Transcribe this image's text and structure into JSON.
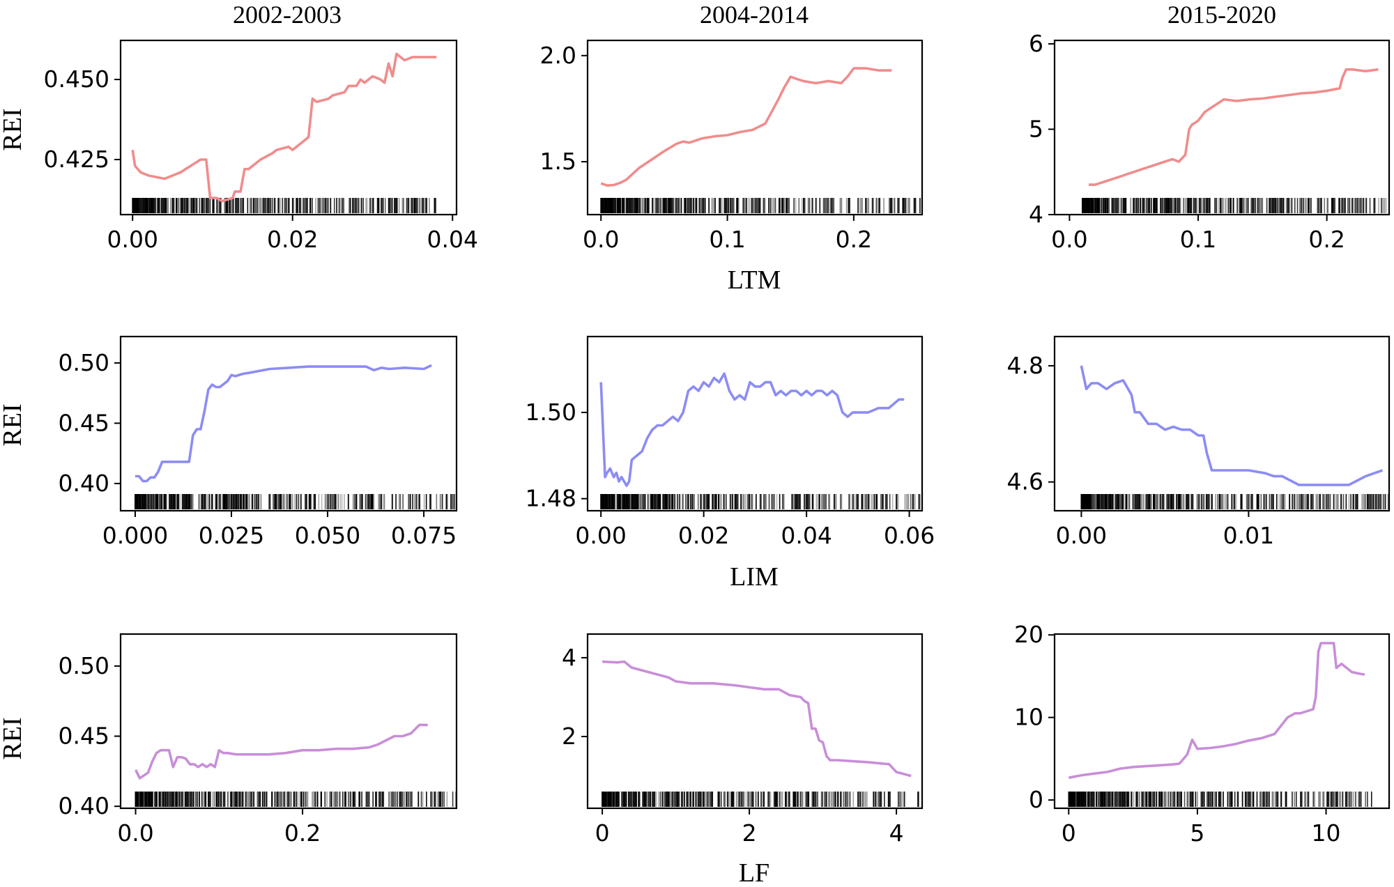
{
  "figure": {
    "column_titles": [
      "2002-2003",
      "2004-2014",
      "2015-2020"
    ],
    "row_ylabel": "REI",
    "row_xlabels": [
      "LTM",
      "LIM",
      "LF"
    ],
    "colors": {
      "LTM": "#f08c8c",
      "LIM": "#8c8cf4",
      "LF": "#c88ed8",
      "rug": "#000000"
    }
  },
  "chart_data": [
    {
      "type": "line",
      "id": "ltm-2002-2003",
      "period": "2002-2003",
      "variable": "LTM",
      "xlabel": "",
      "ylabel": "REI",
      "xlim": [
        -0.0015,
        0.0405
      ],
      "ylim": [
        0.4078,
        0.4622
      ],
      "xticks": [
        0.0,
        0.02,
        0.04
      ],
      "xtick_labels": [
        "0.00",
        "0.02",
        "0.04"
      ],
      "yticks": [
        0.425,
        0.45
      ],
      "ytick_labels": [
        "0.425",
        "0.450"
      ],
      "rug_range": [
        0.0,
        0.038
      ],
      "series": [
        {
          "name": "REI",
          "color": "#f08c8c",
          "x": [
            0.0,
            0.0003,
            0.001,
            0.002,
            0.004,
            0.006,
            0.0085,
            0.0092,
            0.0097,
            0.0105,
            0.0112,
            0.0125,
            0.0128,
            0.0135,
            0.014,
            0.0145,
            0.016,
            0.0175,
            0.018,
            0.0195,
            0.02,
            0.021,
            0.022,
            0.0225,
            0.023,
            0.0245,
            0.025,
            0.0265,
            0.027,
            0.028,
            0.0285,
            0.029,
            0.03,
            0.031,
            0.0315,
            0.032,
            0.0325,
            0.033,
            0.034,
            0.035,
            0.036,
            0.037,
            0.038
          ],
          "y": [
            0.428,
            0.423,
            0.421,
            0.42,
            0.419,
            0.421,
            0.425,
            0.425,
            0.413,
            0.413,
            0.412,
            0.413,
            0.415,
            0.415,
            0.422,
            0.422,
            0.425,
            0.427,
            0.428,
            0.429,
            0.428,
            0.43,
            0.432,
            0.444,
            0.443,
            0.444,
            0.445,
            0.446,
            0.448,
            0.448,
            0.45,
            0.449,
            0.451,
            0.45,
            0.449,
            0.455,
            0.451,
            0.458,
            0.456,
            0.457,
            0.457,
            0.457,
            0.457
          ]
        }
      ]
    },
    {
      "type": "line",
      "id": "ltm-2004-2014",
      "period": "2004-2014",
      "variable": "LTM",
      "xlabel": "LTM",
      "ylabel": "",
      "xlim": [
        -0.0106,
        0.2541
      ],
      "ylim": [
        1.2509,
        2.0715
      ],
      "xticks": [
        0.0,
        0.1,
        0.2
      ],
      "xtick_labels": [
        "0.0",
        "0.1",
        "0.2"
      ],
      "yticks": [
        1.5,
        2.0
      ],
      "ytick_labels": [
        "1.5",
        "2.0"
      ],
      "rug_range": [
        0.0,
        0.254
      ],
      "series": [
        {
          "name": "REI",
          "color": "#f08c8c",
          "x": [
            0.0,
            0.005,
            0.01,
            0.015,
            0.02,
            0.03,
            0.04,
            0.05,
            0.06,
            0.065,
            0.07,
            0.08,
            0.09,
            0.1,
            0.11,
            0.12,
            0.13,
            0.14,
            0.145,
            0.15,
            0.155,
            0.16,
            0.17,
            0.18,
            0.19,
            0.195,
            0.2,
            0.21,
            0.22,
            0.23
          ],
          "y": [
            1.398,
            1.388,
            1.39,
            1.4,
            1.415,
            1.47,
            1.51,
            1.55,
            1.585,
            1.595,
            1.59,
            1.61,
            1.62,
            1.625,
            1.64,
            1.65,
            1.68,
            1.79,
            1.85,
            1.9,
            1.89,
            1.88,
            1.87,
            1.88,
            1.87,
            1.9,
            1.94,
            1.94,
            1.93,
            1.93
          ]
        }
      ]
    },
    {
      "type": "line",
      "id": "ltm-2015-2020",
      "period": "2015-2020",
      "variable": "LTM",
      "xlabel": "",
      "ylabel": "",
      "xlim": [
        -0.0116,
        0.2484
      ],
      "ylim": [
        4.0,
        6.0404
      ],
      "xticks": [
        0.0,
        0.1,
        0.2
      ],
      "xtick_labels": [
        "0.0",
        "0.1",
        "0.2"
      ],
      "yticks": [
        4,
        5,
        6
      ],
      "ytick_labels": [
        "4",
        "5",
        "6"
      ],
      "rug_range": [
        0.01,
        0.248
      ],
      "series": [
        {
          "name": "REI",
          "color": "#f08c8c",
          "x": [
            0.015,
            0.02,
            0.03,
            0.04,
            0.05,
            0.06,
            0.07,
            0.08,
            0.085,
            0.09,
            0.093,
            0.095,
            0.1,
            0.105,
            0.11,
            0.12,
            0.13,
            0.14,
            0.15,
            0.16,
            0.17,
            0.18,
            0.19,
            0.2,
            0.21,
            0.212,
            0.215,
            0.22,
            0.23,
            0.24
          ],
          "y": [
            4.35,
            4.35,
            4.4,
            4.45,
            4.5,
            4.55,
            4.6,
            4.65,
            4.62,
            4.7,
            5.0,
            5.05,
            5.1,
            5.2,
            5.25,
            5.35,
            5.33,
            5.35,
            5.36,
            5.38,
            5.4,
            5.42,
            5.43,
            5.45,
            5.48,
            5.6,
            5.7,
            5.7,
            5.68,
            5.7
          ]
        }
      ]
    },
    {
      "type": "line",
      "id": "lim-2002-2003",
      "period": "2002-2003",
      "variable": "LIM",
      "xlabel": "",
      "ylabel": "REI",
      "xlim": [
        -0.0038,
        0.0835
      ],
      "ylim": [
        0.3774,
        0.5219
      ],
      "xticks": [
        0.0,
        0.025,
        0.05,
        0.075
      ],
      "xtick_labels": [
        "0.000",
        "0.025",
        "0.050",
        "0.075"
      ],
      "yticks": [
        0.4,
        0.45,
        0.5
      ],
      "ytick_labels": [
        "0.40",
        "0.45",
        "0.50"
      ],
      "rug_range": [
        0.0,
        0.083
      ],
      "series": [
        {
          "name": "REI",
          "color": "#8c8cf4",
          "x": [
            0.0,
            0.001,
            0.002,
            0.003,
            0.004,
            0.005,
            0.006,
            0.007,
            0.008,
            0.01,
            0.012,
            0.014,
            0.015,
            0.016,
            0.017,
            0.018,
            0.019,
            0.02,
            0.021,
            0.022,
            0.024,
            0.025,
            0.026,
            0.028,
            0.03,
            0.035,
            0.04,
            0.045,
            0.05,
            0.055,
            0.06,
            0.062,
            0.064,
            0.066,
            0.07,
            0.075,
            0.077
          ],
          "y": [
            0.406,
            0.406,
            0.402,
            0.402,
            0.405,
            0.405,
            0.41,
            0.418,
            0.418,
            0.418,
            0.418,
            0.418,
            0.44,
            0.445,
            0.445,
            0.46,
            0.478,
            0.482,
            0.48,
            0.48,
            0.485,
            0.49,
            0.489,
            0.491,
            0.492,
            0.495,
            0.496,
            0.497,
            0.497,
            0.497,
            0.497,
            0.494,
            0.496,
            0.495,
            0.496,
            0.495,
            0.498
          ]
        }
      ]
    },
    {
      "type": "line",
      "id": "lim-2004-2014",
      "period": "2004-2014",
      "variable": "LIM",
      "xlabel": "LIM",
      "ylabel": "",
      "xlim": [
        -0.0026,
        0.0625
      ],
      "ylim": [
        1.4772,
        1.5176
      ],
      "xticks": [
        0.0,
        0.02,
        0.04,
        0.06
      ],
      "xtick_labels": [
        "0.00",
        "0.02",
        "0.04",
        "0.06"
      ],
      "yticks": [
        1.48,
        1.5
      ],
      "ytick_labels": [
        "1.48",
        "1.50"
      ],
      "rug_range": [
        0.0,
        0.0625
      ],
      "series": [
        {
          "name": "REI",
          "color": "#8c8cf4",
          "x": [
            0.0,
            0.0008,
            0.0012,
            0.0018,
            0.0025,
            0.003,
            0.0035,
            0.004,
            0.0045,
            0.005,
            0.0055,
            0.006,
            0.007,
            0.008,
            0.009,
            0.01,
            0.011,
            0.012,
            0.013,
            0.014,
            0.015,
            0.016,
            0.017,
            0.018,
            0.019,
            0.02,
            0.021,
            0.022,
            0.023,
            0.024,
            0.025,
            0.026,
            0.027,
            0.028,
            0.029,
            0.03,
            0.031,
            0.032,
            0.033,
            0.034,
            0.035,
            0.036,
            0.037,
            0.038,
            0.039,
            0.04,
            0.041,
            0.042,
            0.043,
            0.044,
            0.045,
            0.046,
            0.047,
            0.048,
            0.049,
            0.05,
            0.052,
            0.054,
            0.056,
            0.058,
            0.059
          ],
          "y": [
            1.507,
            1.485,
            1.486,
            1.487,
            1.485,
            1.486,
            1.484,
            1.485,
            1.484,
            1.483,
            1.484,
            1.489,
            1.49,
            1.491,
            1.494,
            1.496,
            1.497,
            1.497,
            1.498,
            1.499,
            1.498,
            1.5,
            1.505,
            1.506,
            1.505,
            1.507,
            1.506,
            1.508,
            1.507,
            1.509,
            1.505,
            1.503,
            1.504,
            1.503,
            1.507,
            1.506,
            1.506,
            1.507,
            1.507,
            1.504,
            1.505,
            1.504,
            1.505,
            1.505,
            1.504,
            1.505,
            1.504,
            1.505,
            1.505,
            1.504,
            1.505,
            1.504,
            1.5,
            1.499,
            1.5,
            1.5,
            1.5,
            1.501,
            1.501,
            1.503,
            1.503
          ]
        }
      ]
    },
    {
      "type": "line",
      "id": "lim-2015-2020",
      "period": "2015-2020",
      "variable": "LIM",
      "xlabel": "",
      "ylabel": "",
      "xlim": [
        -0.0016,
        0.0184
      ],
      "ylim": [
        4.5505,
        4.8503
      ],
      "xticks": [
        0.0,
        0.01
      ],
      "xtick_labels": [
        "0.00",
        "0.01"
      ],
      "yticks": [
        4.6,
        4.8
      ],
      "ytick_labels": [
        "4.6",
        "4.8"
      ],
      "rug_range": [
        0.0,
        0.0184
      ],
      "series": [
        {
          "name": "REI",
          "color": "#8c8cf4",
          "x": [
            0.0,
            0.0003,
            0.0006,
            0.001,
            0.0015,
            0.002,
            0.0025,
            0.003,
            0.0032,
            0.0035,
            0.004,
            0.0045,
            0.005,
            0.0055,
            0.006,
            0.0065,
            0.007,
            0.0073,
            0.0075,
            0.0078,
            0.008,
            0.009,
            0.01,
            0.011,
            0.0115,
            0.012,
            0.013,
            0.014,
            0.015,
            0.016,
            0.017,
            0.0175,
            0.018
          ],
          "y": [
            4.8,
            4.76,
            4.77,
            4.77,
            4.76,
            4.77,
            4.775,
            4.75,
            4.72,
            4.72,
            4.7,
            4.7,
            4.69,
            4.695,
            4.69,
            4.69,
            4.68,
            4.68,
            4.65,
            4.62,
            4.62,
            4.62,
            4.62,
            4.615,
            4.61,
            4.61,
            4.595,
            4.595,
            4.595,
            4.595,
            4.61,
            4.615,
            4.62
          ]
        }
      ]
    },
    {
      "type": "line",
      "id": "lf-2002-2003",
      "period": "2002-2003",
      "variable": "LF",
      "xlabel": "",
      "ylabel": "REI",
      "xlim": [
        -0.018,
        0.3845
      ],
      "ylim": [
        0.3986,
        0.5228
      ],
      "xticks": [
        0.0,
        0.2
      ],
      "xtick_labels": [
        "0.0",
        "0.2"
      ],
      "yticks": [
        0.4,
        0.45,
        0.5
      ],
      "ytick_labels": [
        "0.40",
        "0.45",
        "0.50"
      ],
      "rug_range": [
        0.0,
        0.3845
      ],
      "series": [
        {
          "name": "REI",
          "color": "#c88ed8",
          "x": [
            0.0,
            0.005,
            0.01,
            0.015,
            0.02,
            0.025,
            0.03,
            0.035,
            0.04,
            0.045,
            0.05,
            0.055,
            0.06,
            0.065,
            0.07,
            0.075,
            0.08,
            0.085,
            0.09,
            0.095,
            0.1,
            0.105,
            0.11,
            0.12,
            0.14,
            0.16,
            0.18,
            0.2,
            0.22,
            0.24,
            0.26,
            0.28,
            0.29,
            0.3,
            0.31,
            0.32,
            0.33,
            0.34,
            0.35
          ],
          "y": [
            0.426,
            0.42,
            0.422,
            0.424,
            0.432,
            0.438,
            0.44,
            0.44,
            0.44,
            0.428,
            0.435,
            0.435,
            0.434,
            0.43,
            0.43,
            0.428,
            0.43,
            0.428,
            0.43,
            0.428,
            0.44,
            0.438,
            0.438,
            0.437,
            0.437,
            0.437,
            0.438,
            0.44,
            0.44,
            0.441,
            0.441,
            0.442,
            0.444,
            0.447,
            0.45,
            0.45,
            0.452,
            0.458,
            0.458
          ]
        }
      ]
    },
    {
      "type": "line",
      "id": "lf-2004-2014",
      "period": "2004-2014",
      "variable": "LF",
      "xlabel": "LF",
      "ylabel": "",
      "xlim": [
        -0.2,
        4.35
      ],
      "ylim": [
        0.18,
        4.6
      ],
      "xticks": [
        0,
        2,
        4
      ],
      "xtick_labels": [
        "0",
        "2",
        "4"
      ],
      "yticks": [
        2,
        4
      ],
      "ytick_labels": [
        "2",
        "4"
      ],
      "rug_range": [
        0.0,
        4.35
      ],
      "series": [
        {
          "name": "REI",
          "color": "#c88ed8",
          "x": [
            0.0,
            0.2,
            0.3,
            0.4,
            0.6,
            0.7,
            0.8,
            0.9,
            1.0,
            1.2,
            1.5,
            1.8,
            2.0,
            2.2,
            2.4,
            2.55,
            2.7,
            2.75,
            2.8,
            2.85,
            2.9,
            2.95,
            3.0,
            3.05,
            3.1,
            3.2,
            3.6,
            3.9,
            4.0,
            4.1,
            4.2
          ],
          "y": [
            3.9,
            3.88,
            3.9,
            3.75,
            3.65,
            3.6,
            3.55,
            3.5,
            3.4,
            3.35,
            3.35,
            3.3,
            3.25,
            3.2,
            3.2,
            3.05,
            3.0,
            2.9,
            2.85,
            2.2,
            2.2,
            1.9,
            1.85,
            1.5,
            1.4,
            1.4,
            1.35,
            1.3,
            1.1,
            1.05,
            1.0
          ]
        }
      ]
    },
    {
      "type": "line",
      "id": "lf-2015-2020",
      "period": "2015-2020",
      "variable": "LF",
      "xlabel": "",
      "ylabel": "",
      "xlim": [
        -0.55,
        12.45
      ],
      "ylim": [
        -1.0,
        20.1
      ],
      "xticks": [
        0,
        5,
        10
      ],
      "xtick_labels": [
        "0",
        "5",
        "10"
      ],
      "yticks": [
        0,
        10,
        20
      ],
      "ytick_labels": [
        "0",
        "10",
        "20"
      ],
      "rug_range": [
        0.0,
        11.8
      ],
      "series": [
        {
          "name": "REI",
          "color": "#c88ed8",
          "x": [
            0.0,
            0.5,
            1.0,
            1.5,
            2.0,
            2.5,
            3.0,
            3.5,
            4.0,
            4.3,
            4.6,
            4.8,
            5.0,
            5.5,
            6.0,
            6.5,
            7.0,
            7.5,
            8.0,
            8.5,
            8.8,
            9.0,
            9.5,
            9.6,
            9.7,
            9.8,
            10.0,
            10.3,
            10.4,
            10.6,
            10.8,
            11.0,
            11.3,
            11.5
          ],
          "y": [
            2.7,
            3.0,
            3.2,
            3.4,
            3.8,
            4.0,
            4.1,
            4.2,
            4.3,
            4.4,
            5.5,
            7.3,
            6.2,
            6.3,
            6.5,
            6.8,
            7.2,
            7.5,
            8.0,
            10.0,
            10.5,
            10.5,
            11.0,
            12.5,
            18.0,
            19.0,
            19.0,
            19.0,
            16.0,
            16.5,
            16.0,
            15.5,
            15.3,
            15.2
          ]
        }
      ]
    }
  ]
}
